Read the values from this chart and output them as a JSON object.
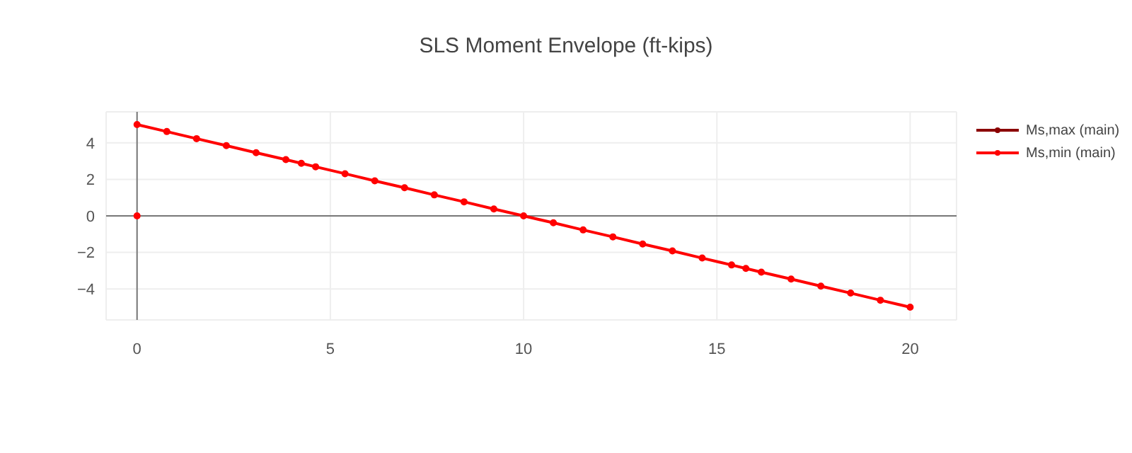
{
  "chart_data": {
    "type": "line",
    "title": "SLS Moment Envelope (ft-kips)",
    "series": [
      {
        "name": "Ms,max (main)",
        "color": "#8b0000"
      },
      {
        "name": "Ms,min (main)",
        "color": "#ff0000",
        "x": [
          0,
          0.77,
          1.54,
          2.31,
          3.08,
          3.85,
          4.25,
          4.62,
          5.38,
          6.15,
          6.92,
          7.69,
          8.46,
          9.23,
          10,
          10.77,
          11.54,
          12.31,
          13.08,
          13.85,
          14.62,
          15.38,
          15.75,
          16.15,
          16.92,
          17.69,
          18.46,
          19.23,
          20
        ],
        "values": [
          5,
          4.62,
          4.23,
          3.85,
          3.46,
          3.08,
          2.88,
          2.69,
          2.31,
          1.92,
          1.54,
          1.15,
          0.77,
          0.38,
          0,
          -0.38,
          -0.77,
          -1.15,
          -1.54,
          -1.92,
          -2.31,
          -2.69,
          -2.88,
          -3.08,
          -3.46,
          -3.85,
          -4.23,
          -4.62,
          -5
        ]
      },
      {
        "type": "scatter",
        "color": "#ff0000",
        "x": [
          0
        ],
        "values": [
          0
        ]
      }
    ],
    "xlim": [
      -0.8,
      21.2
    ],
    "xticks": [
      0,
      5,
      10,
      15,
      20
    ],
    "ylim": [
      -5.7,
      5.7
    ],
    "yticks": [
      -4,
      -2,
      0,
      2,
      4
    ],
    "grid": true,
    "legend": "top right",
    "marker": "circle",
    "line_style": "solid"
  }
}
